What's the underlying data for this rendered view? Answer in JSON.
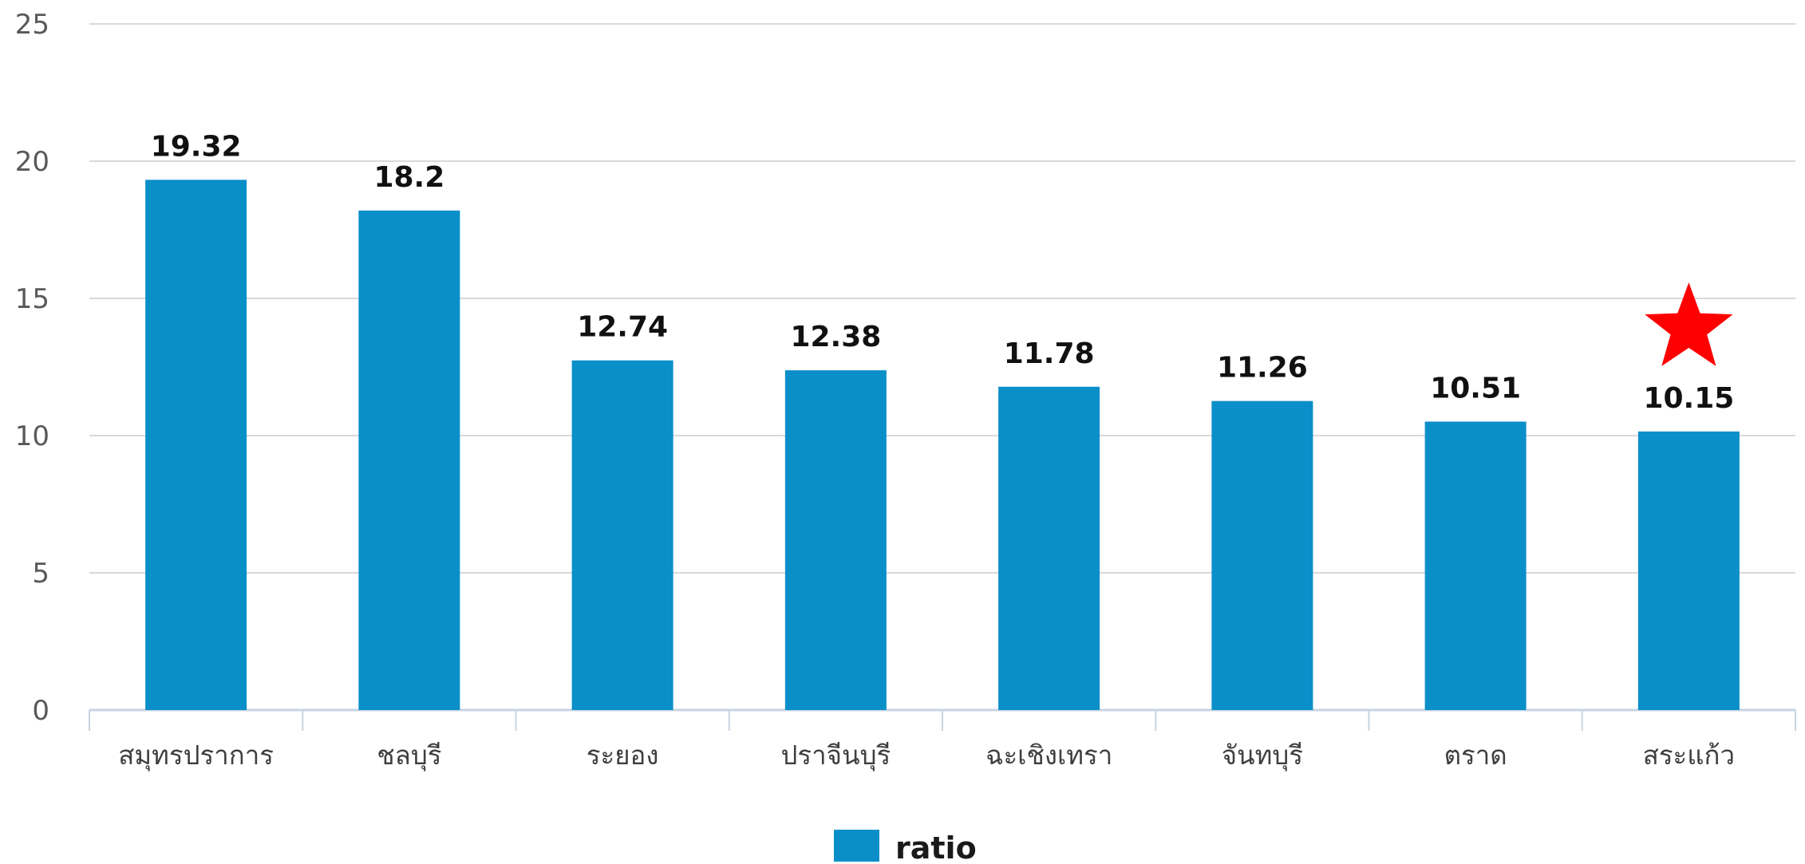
{
  "colors": {
    "bar": "#0a8fc9",
    "grid": "#d9d9d9",
    "axis": "#c7d4e3",
    "marker": "#ff0000"
  },
  "chart_data": {
    "type": "bar",
    "categories": [
      "สมุทรปราการ",
      "ชลบุรี",
      "ระยอง",
      "ปราจีนบุรี",
      "ฉะเชิงเทรา",
      "จันทบุรี",
      "ตราด",
      "สระแก้ว"
    ],
    "series": [
      {
        "name": "ratio",
        "values": [
          19.32,
          18.2,
          12.74,
          12.38,
          11.78,
          11.26,
          10.51,
          10.15
        ]
      }
    ],
    "value_labels": [
      "19.32",
      "18.2",
      "12.74",
      "12.38",
      "11.78",
      "11.26",
      "10.51",
      "10.15"
    ],
    "y_ticks": [
      "0",
      "5",
      "10",
      "15",
      "20",
      "25"
    ],
    "ylim": [
      0,
      25
    ],
    "grid": true,
    "legend_position": "bottom",
    "highlighted_category": "สระแก้ว",
    "highlight_marker": "star"
  }
}
